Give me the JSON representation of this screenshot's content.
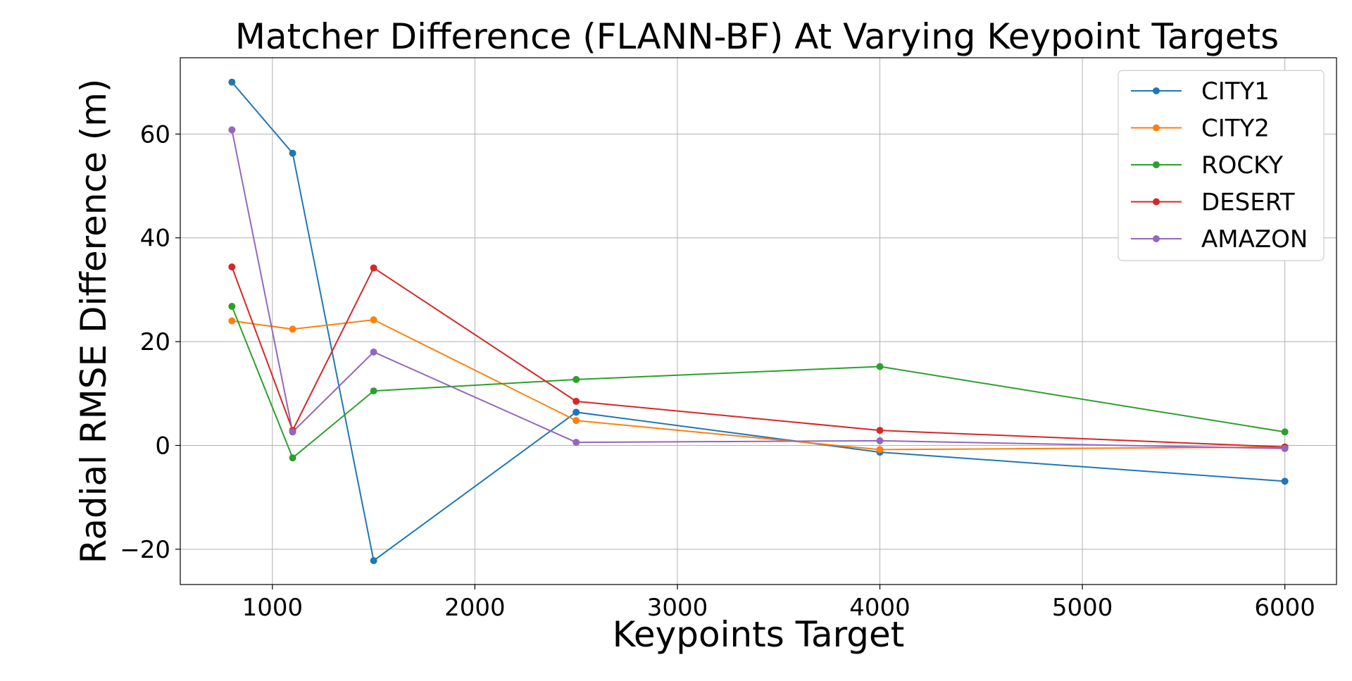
{
  "chart_data": {
    "type": "line",
    "title": "Matcher Difference (FLANN-BF) At Varying Keypoint Targets",
    "xlabel": "Keypoints Target",
    "ylabel": "Radial RMSE Difference (m)",
    "x": [
      800,
      1100,
      1500,
      2500,
      4000,
      6000
    ],
    "xlim": [
      545,
      6255
    ],
    "ylim": [
      -26.8,
      74.7
    ],
    "xticks": [
      1000,
      2000,
      3000,
      4000,
      5000,
      6000
    ],
    "yticks": [
      -20,
      0,
      20,
      40,
      60
    ],
    "ytick_labels": [
      "−20",
      "0",
      "20",
      "40",
      "60"
    ],
    "grid": true,
    "legend_position": "top-right",
    "series": [
      {
        "name": "CITY1",
        "color": "#1f77b4",
        "values": [
          70.0,
          56.3,
          -22.2,
          6.4,
          -1.3,
          -6.9
        ]
      },
      {
        "name": "CITY2",
        "color": "#ff7f0e",
        "values": [
          24.0,
          22.4,
          24.2,
          4.8,
          -0.8,
          -0.3
        ]
      },
      {
        "name": "ROCKY",
        "color": "#2ca02c",
        "values": [
          26.8,
          -2.4,
          10.5,
          12.7,
          15.2,
          2.6
        ]
      },
      {
        "name": "DESERT",
        "color": "#d62728",
        "values": [
          34.4,
          2.9,
          34.2,
          8.5,
          2.9,
          -0.3
        ]
      },
      {
        "name": "AMAZON",
        "color": "#9467bd",
        "values": [
          60.8,
          2.6,
          18.0,
          0.6,
          0.9,
          -0.6
        ]
      }
    ]
  }
}
